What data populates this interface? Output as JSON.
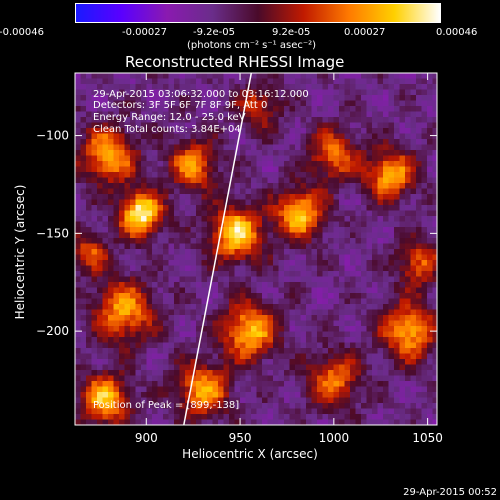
{
  "colorbar": {
    "ticks": [
      "-0.00046",
      "-0.00027",
      "-9.2e-05",
      "9.2e-05",
      "0.00027",
      "0.00046"
    ],
    "units": "(photons cm⁻² s⁻¹ asec⁻²)",
    "colormap": [
      "#1a1aff",
      "#5a00ff",
      "#8a1ab0",
      "#6a2d8a",
      "#4a0a2a",
      "#c01a00",
      "#ff7a00",
      "#ffd000",
      "#ffffff"
    ]
  },
  "plot": {
    "title": "Reconstructed RHESSI Image",
    "annotations": [
      "29-Apr-2015 03:06:32.000 to 03:16:12.000",
      "Detectors: 3F 5F 6F 7F 8F 9F, Att 0",
      "Energy Range: 12.0 - 25.0 keV",
      "Clean     Total counts: 3.84E+04"
    ],
    "peak_label": "Position of Peak = [899,-138]"
  },
  "footer": {
    "timestamp": "29-Apr-2015 00:52"
  },
  "chart_data": {
    "type": "heatmap",
    "title": "Reconstructed RHESSI Image",
    "xlabel": "Heliocentric X (arcsec)",
    "ylabel": "Heliocentric Y (arcsec)",
    "xlim": [
      862,
      1055
    ],
    "ylim": [
      -248,
      -68
    ],
    "x_ticks": [
      900,
      950,
      1000,
      1050
    ],
    "y_ticks": [
      -100,
      -150,
      -200
    ],
    "colorbar_range": [
      -0.00046,
      0.00046
    ],
    "peak": [
      899,
      -138
    ],
    "limb_line": [
      [
        920,
        -248
      ],
      [
        956,
        -68
      ]
    ],
    "sources": [
      {
        "x": 897,
        "y": -140,
        "amp": 1.0,
        "s": 8
      },
      {
        "x": 880,
        "y": -110,
        "amp": 0.75,
        "s": 10
      },
      {
        "x": 888,
        "y": -190,
        "amp": 0.7,
        "s": 11
      },
      {
        "x": 925,
        "y": -115,
        "amp": 0.65,
        "s": 9
      },
      {
        "x": 948,
        "y": -150,
        "amp": 0.85,
        "s": 10
      },
      {
        "x": 982,
        "y": -140,
        "amp": 0.8,
        "s": 9
      },
      {
        "x": 1000,
        "y": -110,
        "amp": 0.6,
        "s": 9
      },
      {
        "x": 1030,
        "y": -120,
        "amp": 0.75,
        "s": 9
      },
      {
        "x": 1040,
        "y": -200,
        "amp": 0.75,
        "s": 10
      },
      {
        "x": 1000,
        "y": -225,
        "amp": 0.6,
        "s": 10
      },
      {
        "x": 955,
        "y": -200,
        "amp": 0.8,
        "s": 10
      },
      {
        "x": 930,
        "y": -230,
        "amp": 0.7,
        "s": 10
      },
      {
        "x": 878,
        "y": -235,
        "amp": 0.8,
        "s": 9
      },
      {
        "x": 1045,
        "y": -165,
        "amp": 0.55,
        "s": 8
      },
      {
        "x": 960,
        "y": -85,
        "amp": 0.45,
        "s": 8
      },
      {
        "x": 870,
        "y": -160,
        "amp": 0.5,
        "s": 7
      }
    ]
  }
}
